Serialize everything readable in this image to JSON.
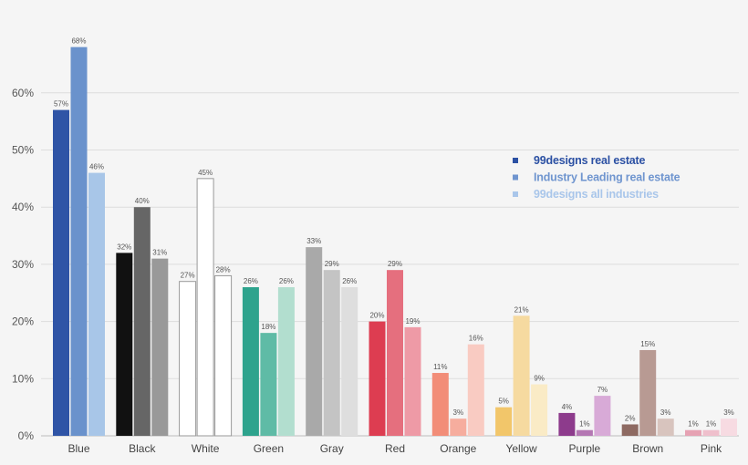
{
  "chart_data": {
    "type": "bar",
    "categories": [
      "Blue",
      "Black",
      "White",
      "Green",
      "Gray",
      "Red",
      "Orange",
      "Yellow",
      "Purple",
      "Brown",
      "Pink"
    ],
    "series": [
      {
        "name": "99designs real estate",
        "values": [
          57,
          32,
          27,
          26,
          33,
          20,
          11,
          5,
          4,
          2,
          1
        ]
      },
      {
        "name": "Industry Leading real estate",
        "values": [
          68,
          40,
          45,
          18,
          29,
          29,
          3,
          21,
          1,
          15,
          1
        ]
      },
      {
        "name": "99designs all industries",
        "values": [
          46,
          31,
          28,
          26,
          26,
          19,
          16,
          9,
          7,
          3,
          3
        ]
      }
    ],
    "yticks": [
      "0%",
      "10%",
      "20%",
      "30%",
      "40%",
      "50%",
      "60%"
    ],
    "ylim": [
      0,
      70
    ],
    "grid": true,
    "legend_position": "right",
    "legend_colors": [
      "#2b50a3",
      "#6f95cf",
      "#a9c6ea"
    ],
    "bar_colors": [
      [
        "#2f54a6",
        "#6a92cc",
        "#a8c6e8"
      ],
      [
        "#111111",
        "#666666",
        "#999999"
      ],
      [
        "#ffffff",
        "#ffffff",
        "#ffffff"
      ],
      [
        "#2ea38d",
        "#5fbba6",
        "#b2decf"
      ],
      [
        "#a9a9a9",
        "#c4c4c4",
        "#dedede"
      ],
      [
        "#dd3d51",
        "#e56f7e",
        "#ee9aa6"
      ],
      [
        "#f28d78",
        "#f6ad9e",
        "#f9cbc2"
      ],
      [
        "#f2c66a",
        "#f6daa0",
        "#faebc6"
      ],
      [
        "#8d3b8c",
        "#b477b3",
        "#d8aad7"
      ],
      [
        "#8e6a62",
        "#b89a93",
        "#d8c4be"
      ],
      [
        "#e6a2b3",
        "#efbfcc",
        "#f7dbe2"
      ]
    ],
    "bar_outline_colors": [
      null,
      null,
      null,
      null,
      null,
      null,
      null,
      null,
      null,
      null,
      null
    ],
    "white_outline_color": "#999999"
  }
}
